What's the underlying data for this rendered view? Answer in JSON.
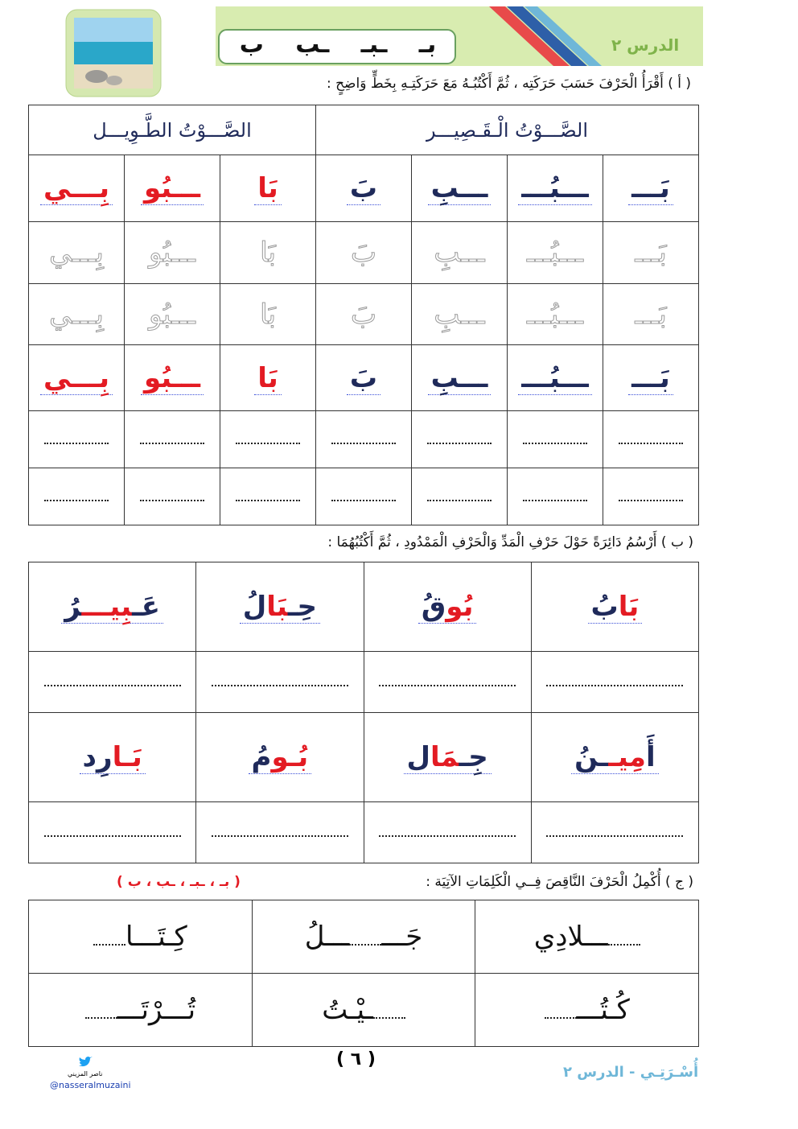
{
  "header": {
    "lesson": "الدرس ٢",
    "letters": [
      "بـ",
      "ـبـ",
      "ـب",
      "ب"
    ]
  },
  "section_a": {
    "instruction": "( أ ) أَقْرَأُ الْحَرْفَ حَسَبَ حَرَكَتِه ، ثُمَّ أَكْتُبُـهُ مَعَ حَرَكَتِـهِ بِخَطٍّ وَاضِحٍ :",
    "short_title": "الصَّـــوْتُ الْـقَـصِيـــر",
    "long_title": "الصَّـــوْتُ الطَّـوِيـــل",
    "short_color": "#1f2a5a",
    "long_color": "#e31b23",
    "trace_color": "#9a9a9a",
    "rows": [
      [
        "بَـــ",
        "ـــبُـــ",
        "ـــبِ",
        "بَ",
        "بَا",
        "ـــبُو",
        "بِـــي"
      ],
      [
        "بَـــ",
        "ـــبُـــ",
        "ـــبِ",
        "بَ",
        "بَا",
        "ـــبُو",
        "بِـــي"
      ],
      [
        "بَـــ",
        "ـــبُـــ",
        "ـــبِ",
        "بَ",
        "بَا",
        "ـــبُو",
        "بِـــي"
      ],
      [
        "بَـــ",
        "ـــبُـــ",
        "ـــبِ",
        "بَ",
        "بَا",
        "ـــبُو",
        "بِـــي"
      ]
    ]
  },
  "section_b": {
    "instruction": "( ب ) أَرْسُمُ دَائِرَةً حَوْلَ حَرْفِ الْمَدِّ وَالْحَرْفِ الْمَمْدُودِ ، ثُمَّ أَكْتُبُهُمَا :",
    "words": [
      [
        {
          "text": "بَا",
          "color": "#e31b23"
        },
        {
          "text": "بُ",
          "color": "#1f2a5a"
        }
      ],
      [
        {
          "text": "بُو",
          "color": "#e31b23"
        },
        {
          "text": "قُ",
          "color": "#1f2a5a"
        }
      ],
      [
        {
          "text": "حِـ",
          "color": "#1f2a5a"
        },
        {
          "text": "بَا",
          "color": "#e31b23"
        },
        {
          "text": "لُ",
          "color": "#1f2a5a"
        }
      ],
      [
        {
          "text": "عَـ",
          "color": "#1f2a5a"
        },
        {
          "text": "بِيـــ",
          "color": "#e31b23"
        },
        {
          "text": "رُ",
          "color": "#1f2a5a"
        }
      ],
      [
        {
          "text": "أَ",
          "color": "#1f2a5a"
        },
        {
          "text": "مِيـ",
          "color": "#e31b23"
        },
        {
          "text": "ـنُ",
          "color": "#1f2a5a"
        }
      ],
      [
        {
          "text": "جِـ",
          "color": "#1f2a5a"
        },
        {
          "text": "مَا",
          "color": "#e31b23"
        },
        {
          "text": "ل",
          "color": "#1f2a5a"
        }
      ],
      [
        {
          "text": "بُـو",
          "color": "#e31b23"
        },
        {
          "text": "مُ",
          "color": "#1f2a5a"
        }
      ],
      [
        {
          "text": "بَـا",
          "color": "#e31b23"
        },
        {
          "text": "رِد",
          "color": "#1f2a5a"
        }
      ]
    ]
  },
  "section_c": {
    "instruction": "( ج ) أُكْمِلُ الْحَرْفَ النَّاقِصَ فِــي الْكَلِمَاتِ الآتِيَة :",
    "choices": "( بـ ، ـبـ ، ـب ، ب )",
    "words": [
      [
        "",
        "ـــلادِي"
      ],
      [
        "جَـــ",
        "ـــلُ"
      ],
      [
        "كِـتَـــا",
        ""
      ],
      [
        "كُـتُـــ",
        ""
      ],
      [
        "",
        "ـيْـتُ"
      ],
      [
        "تُـــرْتَـــ",
        ""
      ]
    ]
  },
  "footer": {
    "page": "( ٦ )",
    "book": "أُسْـرَتِـي - الدرس ٢",
    "handle": "@nasseralmuzaini",
    "author": "ناصر المزيني"
  }
}
